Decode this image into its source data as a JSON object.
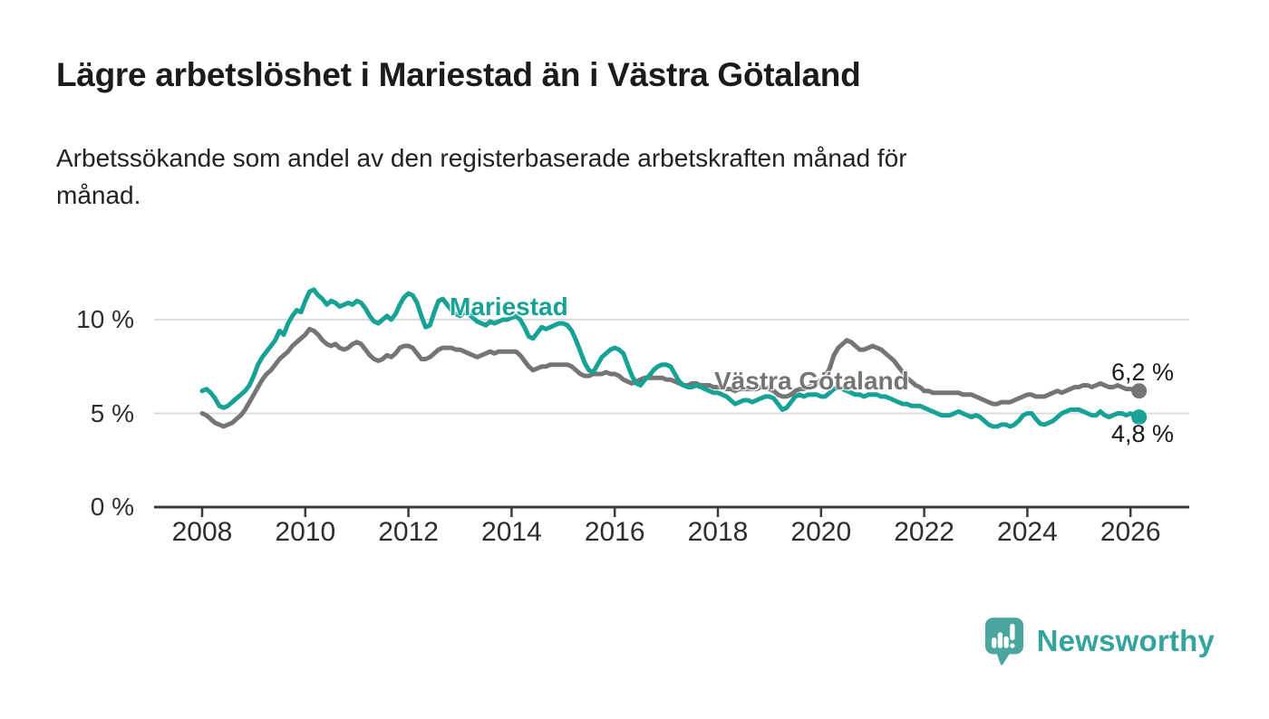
{
  "header": {
    "title": "Lägre arbetslöshet i Mariestad än i Västra Götaland",
    "subtitle": "Arbetssökande som andel av den registerbaserade arbetskraften månad för\nmånad."
  },
  "chart_data": {
    "type": "line",
    "x_start": 2008,
    "x_step_months": 1,
    "x_ticks": [
      2008,
      2010,
      2012,
      2014,
      2016,
      2018,
      2020,
      2022,
      2024,
      2026
    ],
    "y_ticks": [
      {
        "value": 0,
        "label": "0 %"
      },
      {
        "value": 5,
        "label": "5 %"
      },
      {
        "value": 10,
        "label": "10 %"
      }
    ],
    "ylim": [
      0,
      12.5
    ],
    "xlim": [
      2007.1,
      2027.2
    ],
    "grid": "horizontal",
    "legend_position": "inline-labels",
    "series": [
      {
        "name": "Mariestad",
        "color": "#18a296",
        "end_label": "4,8 %",
        "values": [
          6.2,
          6.3,
          6.1,
          5.8,
          5.4,
          5.3,
          5.4,
          5.6,
          5.8,
          6.0,
          6.2,
          6.5,
          7.0,
          7.6,
          8.0,
          8.3,
          8.6,
          8.9,
          9.4,
          9.2,
          9.8,
          10.2,
          10.5,
          10.4,
          11.0,
          11.5,
          11.6,
          11.3,
          11.1,
          10.8,
          11.0,
          10.9,
          10.7,
          10.8,
          10.9,
          10.8,
          11.0,
          10.9,
          10.6,
          10.2,
          9.9,
          9.8,
          10.0,
          10.2,
          10.0,
          10.3,
          10.8,
          11.2,
          11.4,
          11.3,
          10.9,
          10.2,
          9.6,
          9.7,
          10.4,
          11.0,
          11.1,
          10.8,
          10.5,
          10.3,
          10.2,
          10.4,
          10.3,
          10.1,
          9.9,
          9.8,
          9.7,
          9.9,
          9.8,
          9.9,
          10.0,
          10.0,
          10.1,
          10.2,
          10.0,
          9.6,
          9.1,
          9.0,
          9.3,
          9.6,
          9.5,
          9.6,
          9.7,
          9.8,
          9.8,
          9.7,
          9.4,
          8.9,
          8.3,
          7.7,
          7.3,
          7.2,
          7.6,
          8.0,
          8.2,
          8.4,
          8.5,
          8.4,
          8.2,
          7.6,
          7.0,
          6.6,
          6.5,
          6.8,
          7.0,
          7.3,
          7.5,
          7.6,
          7.6,
          7.5,
          7.1,
          6.7,
          6.5,
          6.4,
          6.4,
          6.5,
          6.4,
          6.3,
          6.2,
          6.1,
          6.1,
          6.0,
          5.9,
          5.7,
          5.5,
          5.6,
          5.7,
          5.7,
          5.6,
          5.7,
          5.8,
          5.9,
          5.9,
          5.8,
          5.5,
          5.2,
          5.3,
          5.6,
          5.9,
          6.0,
          5.9,
          6.0,
          6.0,
          6.0,
          5.9,
          5.9,
          6.1,
          6.3,
          6.4,
          6.3,
          6.2,
          6.1,
          6.0,
          6.0,
          5.9,
          6.0,
          6.0,
          6.0,
          5.9,
          5.9,
          5.8,
          5.7,
          5.6,
          5.5,
          5.5,
          5.4,
          5.4,
          5.4,
          5.3,
          5.2,
          5.1,
          5.0,
          4.9,
          4.9,
          4.9,
          5.0,
          5.1,
          5.0,
          4.9,
          4.8,
          4.9,
          4.8,
          4.6,
          4.4,
          4.3,
          4.3,
          4.4,
          4.4,
          4.3,
          4.4,
          4.6,
          4.9,
          5.0,
          5.0,
          4.7,
          4.45,
          4.4,
          4.5,
          4.6,
          4.8,
          5.0,
          5.1,
          5.2,
          5.2,
          5.2,
          5.1,
          5.0,
          4.9,
          4.9,
          5.1,
          4.9,
          4.8,
          4.9,
          5.0,
          5.0,
          4.9,
          5.0,
          4.9,
          4.8
        ]
      },
      {
        "name": "Västra Götaland",
        "color": "#757575",
        "end_label": "6,2 %",
        "values": [
          5.0,
          4.9,
          4.7,
          4.5,
          4.4,
          4.3,
          4.4,
          4.5,
          4.7,
          4.9,
          5.2,
          5.6,
          6.0,
          6.4,
          6.8,
          7.1,
          7.3,
          7.6,
          7.9,
          8.1,
          8.3,
          8.6,
          8.8,
          9.0,
          9.2,
          9.5,
          9.4,
          9.2,
          8.9,
          8.7,
          8.6,
          8.7,
          8.5,
          8.4,
          8.5,
          8.7,
          8.8,
          8.7,
          8.4,
          8.1,
          7.9,
          7.8,
          7.9,
          8.1,
          8.0,
          8.2,
          8.5,
          8.6,
          8.6,
          8.5,
          8.2,
          7.9,
          7.9,
          8.0,
          8.2,
          8.4,
          8.5,
          8.5,
          8.5,
          8.4,
          8.4,
          8.3,
          8.2,
          8.1,
          8.0,
          8.1,
          8.2,
          8.3,
          8.2,
          8.3,
          8.3,
          8.3,
          8.3,
          8.3,
          8.1,
          7.8,
          7.5,
          7.3,
          7.4,
          7.5,
          7.5,
          7.6,
          7.6,
          7.6,
          7.6,
          7.6,
          7.5,
          7.3,
          7.1,
          7.0,
          7.0,
          7.1,
          7.1,
          7.1,
          7.2,
          7.1,
          7.1,
          7.0,
          6.8,
          6.7,
          6.6,
          6.7,
          6.8,
          6.9,
          6.9,
          6.9,
          6.9,
          6.9,
          6.8,
          6.8,
          6.7,
          6.6,
          6.5,
          6.5,
          6.6,
          6.6,
          6.5,
          6.5,
          6.5,
          6.4,
          6.4,
          6.4,
          6.3,
          6.3,
          6.2,
          6.3,
          6.3,
          6.3,
          6.3,
          6.3,
          6.4,
          6.4,
          6.3,
          6.2,
          6.0,
          5.9,
          5.9,
          6.0,
          6.2,
          6.3,
          6.3,
          6.4,
          6.5,
          6.6,
          6.8,
          7.0,
          7.4,
          8.1,
          8.5,
          8.7,
          8.9,
          8.8,
          8.6,
          8.4,
          8.4,
          8.5,
          8.6,
          8.5,
          8.4,
          8.2,
          8.0,
          7.8,
          7.5,
          7.2,
          6.9,
          6.7,
          6.5,
          6.4,
          6.2,
          6.2,
          6.1,
          6.1,
          6.1,
          6.1,
          6.1,
          6.1,
          6.1,
          6.0,
          6.0,
          6.0,
          5.9,
          5.8,
          5.7,
          5.6,
          5.5,
          5.5,
          5.6,
          5.6,
          5.6,
          5.7,
          5.8,
          5.9,
          6.0,
          6.0,
          5.9,
          5.9,
          5.9,
          6.0,
          6.1,
          6.2,
          6.1,
          6.2,
          6.3,
          6.4,
          6.4,
          6.5,
          6.5,
          6.4,
          6.5,
          6.6,
          6.5,
          6.4,
          6.4,
          6.5,
          6.4,
          6.3,
          6.3,
          6.3,
          6.2
        ]
      }
    ]
  },
  "footer": {
    "brand": "Newsworthy",
    "logo_icon": "bar-chart-speech-bubble-icon"
  },
  "colors": {
    "teal": "#18a296",
    "gray": "#757575",
    "axis": "#3b3b3b",
    "grid": "#dcdcdc",
    "text": "#1b1b1b",
    "logo": "#4aa69e",
    "brand_text": "#35a49c",
    "background": "#ffffff"
  }
}
